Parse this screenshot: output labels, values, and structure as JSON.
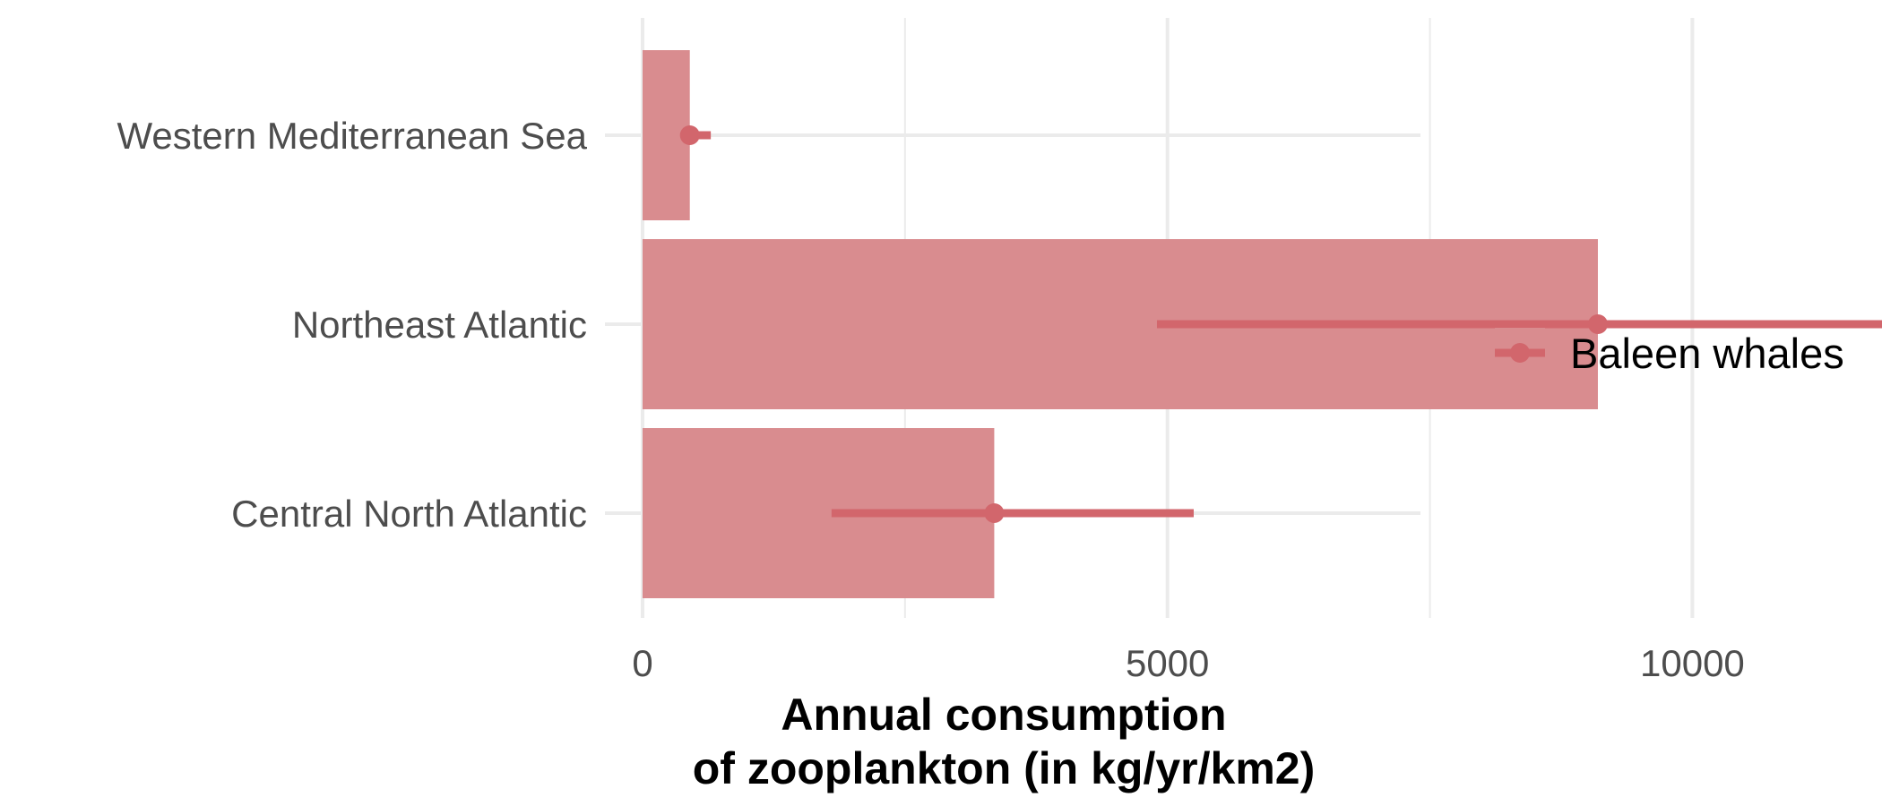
{
  "chart_data": {
    "type": "bar",
    "orientation": "horizontal",
    "categories": [
      "Western Mediterranean Sea",
      "Northeast Atlantic",
      "Central North Atlantic"
    ],
    "series": [
      {
        "name": "Baleen whales",
        "values": [
          450,
          9100,
          3350
        ],
        "error_low": [
          400,
          4900,
          1800
        ],
        "error_high": [
          650,
          14100,
          5250
        ],
        "color": "#d98c8f",
        "point_color": "#d2666c"
      }
    ],
    "xlabel": "Annual consumption\nof zooplankton (in kg/yr/km2)",
    "xlabel_lines": [
      "Annual consumption",
      "of zooplankton (in kg/yr/km2)"
    ],
    "ylabel": "",
    "xlim": [
      0,
      14100
    ],
    "x_ticks": [
      0,
      5000,
      10000
    ],
    "x_tick_labels": [
      "0",
      "5000",
      "10000"
    ],
    "x_minor_ticks": [
      2500,
      7500,
      12500
    ],
    "grid": true,
    "legend_position": "right"
  },
  "colors": {
    "bar": "#d98c8f",
    "point": "#d2666c",
    "grid": "#ebebeb",
    "tick_text": "#4d4d4d",
    "title_text": "#000000"
  }
}
